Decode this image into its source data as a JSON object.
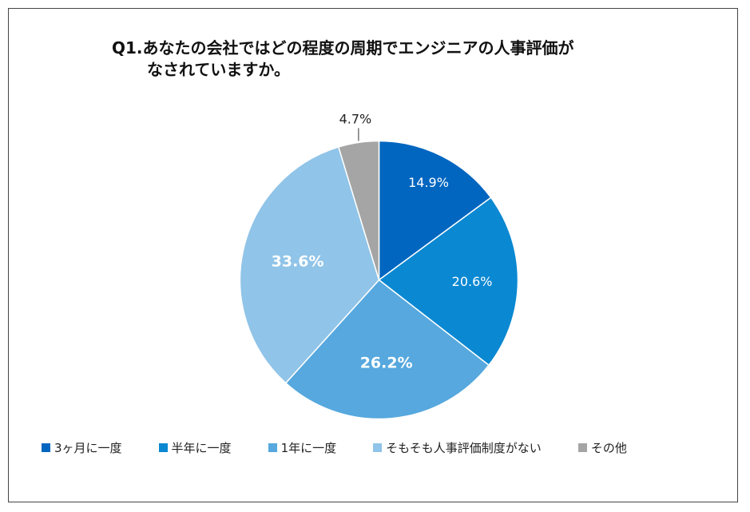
{
  "chart_data": {
    "type": "pie",
    "title_line1": "Q1.あなたの会社ではどの程度の周期でエンジニアの人事評価が",
    "title_line2": "なされていますか。",
    "slices": [
      {
        "label": "3ヶ月に一度",
        "value": 14.9,
        "display": "14.9%",
        "color": "#0066c0"
      },
      {
        "label": "半年に一度",
        "value": 20.6,
        "display": "20.6%",
        "color": "#0a88d2"
      },
      {
        "label": "1年に一度",
        "value": 26.2,
        "display": "26.2%",
        "color": "#56a8de"
      },
      {
        "label": "そもそも人事評価制度がない",
        "value": 33.6,
        "display": "33.6%",
        "color": "#90c4e8"
      },
      {
        "label": "その他",
        "value": 4.7,
        "display": "4.7%",
        "color": "#a5a5a5"
      }
    ],
    "legend_position": "bottom"
  }
}
